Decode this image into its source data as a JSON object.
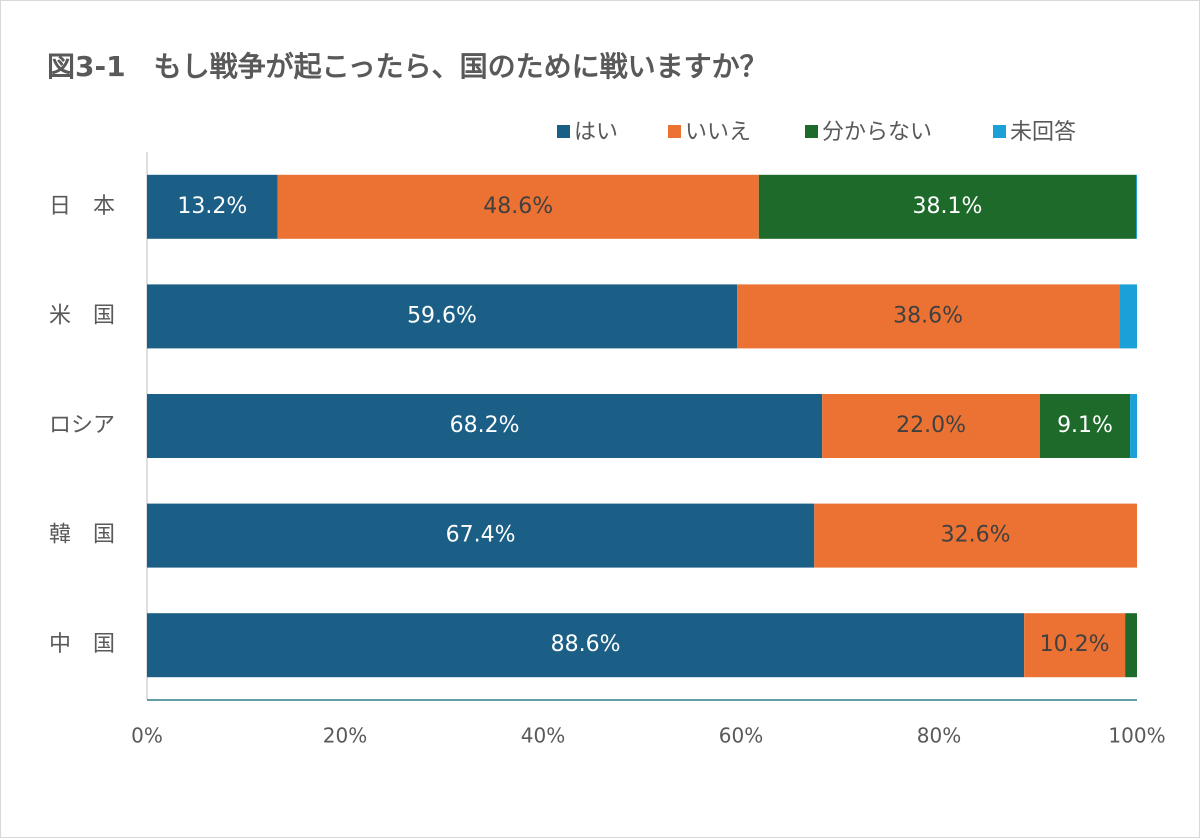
{
  "chart_data": {
    "type": "stacked-bar-horizontal",
    "title": "図3-1　もし戦争が起こったら、国のために戦いますか？",
    "categories": [
      "日　本",
      "米　国",
      "ロシア",
      "韓　国",
      "中　国"
    ],
    "series": [
      {
        "name": "はい",
        "color": "#1b5f86",
        "values": [
          13.2,
          59.6,
          68.2,
          67.4,
          88.6
        ],
        "value_labels": [
          "13.2%",
          "59.6%",
          "68.2%",
          "67.4%",
          "88.6%"
        ]
      },
      {
        "name": "いいえ",
        "color": "#ec7234",
        "values": [
          48.6,
          38.6,
          22.0,
          32.6,
          10.2
        ],
        "value_labels": [
          "48.6%",
          "38.6%",
          "22.0%",
          "32.6%",
          "10.2%"
        ]
      },
      {
        "name": "分からない",
        "color": "#1e6a2b",
        "values": [
          38.1,
          0,
          9.1,
          0,
          1.2
        ],
        "value_labels": [
          "38.1%",
          null,
          "9.1%",
          null,
          null
        ]
      },
      {
        "name": "未回答",
        "color": "#1ba0d8",
        "values": [
          0.1,
          1.8,
          0.7,
          0,
          0
        ],
        "value_labels": [
          null,
          null,
          null,
          null,
          null
        ]
      }
    ],
    "xlim": [
      0,
      100
    ],
    "xticks": [
      {
        "value": 0,
        "label": "0%"
      },
      {
        "value": 20,
        "label": "20%"
      },
      {
        "value": 40,
        "label": "40%"
      },
      {
        "value": 60,
        "label": "60%"
      },
      {
        "value": 80,
        "label": "80%"
      },
      {
        "value": 100,
        "label": "100%"
      }
    ],
    "legend": "top-right"
  }
}
